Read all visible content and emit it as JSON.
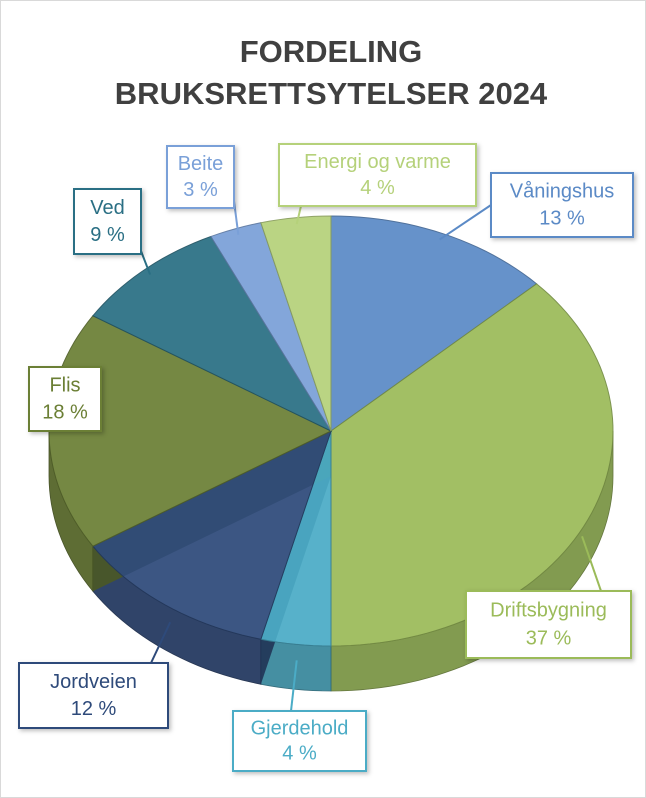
{
  "chart_data": {
    "type": "pie3d",
    "title": "FORDELING BRUKSRETTSYTELSER 2024",
    "categories": [
      "Våningshus",
      "Driftsbygning",
      "Gjerdehold",
      "Jordveien",
      "Flis",
      "Ved",
      "Beite",
      "Energi og varme"
    ],
    "values": [
      13,
      37,
      4,
      12,
      18,
      9,
      3,
      4
    ],
    "value_labels": [
      "13 %",
      "37 %",
      "4 %",
      "12 %",
      "18 %",
      "9 %",
      "3 %",
      "4 %"
    ],
    "colors": [
      "#5b8ac6",
      "#9bbb59",
      "#4bacc6",
      "#2e4a7a",
      "#6b7f35",
      "#2a6f84",
      "#7aa0d8",
      "#b5d17a"
    ]
  }
}
